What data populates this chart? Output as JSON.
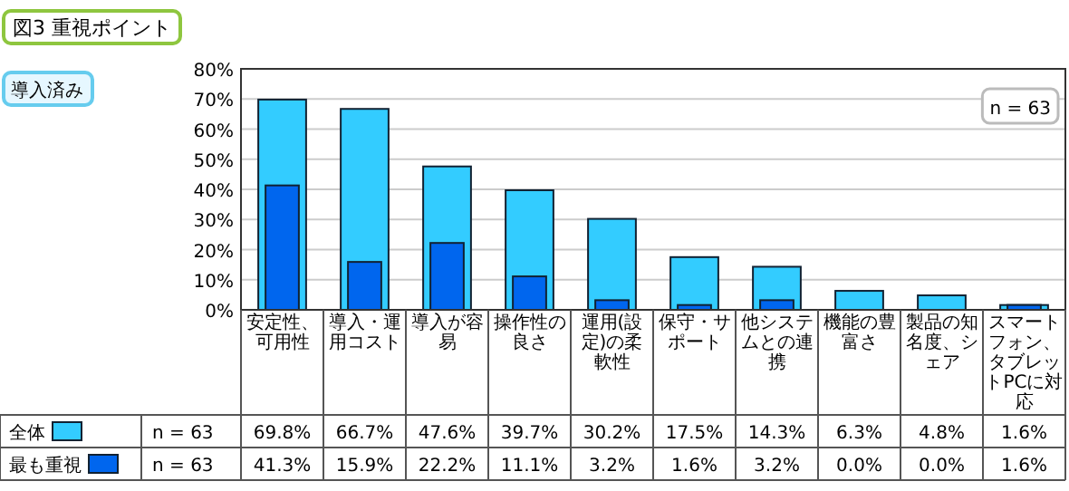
{
  "chart_data": {
    "type": "bar",
    "title": "図3 重視ポイント",
    "subtitle": "導入済み",
    "categories": [
      "安定性、可用性",
      "導入・運用コスト",
      "導入が容易",
      "操作性の良さ",
      "運用(設定)の柔軟性",
      "保守・サポート",
      "他システムとの連携",
      "機能の豊富さ",
      "製品の知名度、シェア",
      "スマートフォン、タブレットPCに対応"
    ],
    "series": [
      {
        "name": "全体",
        "color": "#33ccff",
        "values": [
          69.8,
          66.7,
          47.6,
          39.7,
          30.2,
          17.5,
          14.3,
          6.3,
          4.8,
          1.6
        ],
        "value_labels": [
          "69.8%",
          "66.7%",
          "47.6%",
          "39.7%",
          "30.2%",
          "17.5%",
          "14.3%",
          "6.3%",
          "4.8%",
          "1.6%"
        ]
      },
      {
        "name": "最も重視",
        "color": "#0066ee",
        "values": [
          41.3,
          15.9,
          22.2,
          11.1,
          3.2,
          1.6,
          3.2,
          0.0,
          0.0,
          1.6
        ],
        "value_labels": [
          "41.3%",
          "15.9%",
          "22.2%",
          "11.1%",
          "3.2%",
          "1.6%",
          "3.2%",
          "0.0%",
          "0.0%",
          "1.6%"
        ]
      }
    ],
    "ylim": [
      0,
      80
    ],
    "yticks": [
      {
        "value": 0,
        "label": "0%"
      },
      {
        "value": 10,
        "label": "10%"
      },
      {
        "value": 20,
        "label": "20%"
      },
      {
        "value": 30,
        "label": "30%"
      },
      {
        "value": 40,
        "label": "40%"
      },
      {
        "value": 50,
        "label": "50%"
      },
      {
        "value": 60,
        "label": "60%"
      },
      {
        "value": 70,
        "label": "70%"
      },
      {
        "value": 80,
        "label": "80%"
      }
    ],
    "grid": "y",
    "legend": "bottom",
    "annotations": [
      "n = 63",
      "n = 63",
      "n = 63"
    ]
  }
}
